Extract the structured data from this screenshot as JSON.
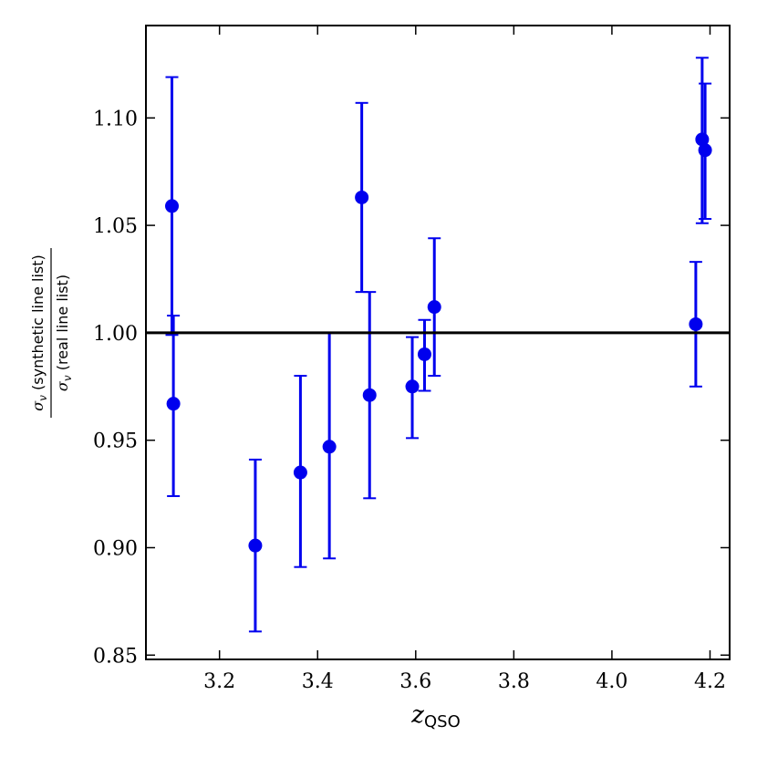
{
  "chart_data": {
    "type": "scatter",
    "xlabel": {
      "base": "z",
      "sub": "QSO"
    },
    "ylabel": {
      "numerator": {
        "symbol": "σ",
        "sub": "v",
        "text": " (synthetic line list)"
      },
      "denominator": {
        "symbol": "σ",
        "sub": "v",
        "text": " (real line list)"
      }
    },
    "xlim": [
      3.05,
      4.24
    ],
    "ylim": [
      0.848,
      1.143
    ],
    "xticks": [
      3.2,
      3.4,
      3.6,
      3.8,
      4.0,
      4.2
    ],
    "xtick_labels": [
      "3.2",
      "3.4",
      "3.6",
      "3.8",
      "4.0",
      "4.2"
    ],
    "yticks": [
      0.85,
      0.9,
      0.95,
      1.0,
      1.05,
      1.1
    ],
    "ytick_labels": [
      "0.85",
      "0.90",
      "0.95",
      "1.00",
      "1.05",
      "1.10"
    ],
    "reference_line": {
      "y": 1.0,
      "color": "#000000"
    },
    "series": [
      {
        "color": "#0000ee",
        "points": [
          {
            "x": 3.103,
            "y": 1.059,
            "lo": 0.999,
            "hi": 1.119
          },
          {
            "x": 3.106,
            "y": 0.967,
            "lo": 0.924,
            "hi": 1.008
          },
          {
            "x": 3.273,
            "y": 0.901,
            "lo": 0.861,
            "hi": 0.941
          },
          {
            "x": 3.365,
            "y": 0.935,
            "lo": 0.891,
            "hi": 0.98
          },
          {
            "x": 3.424,
            "y": 0.947,
            "lo": 0.895,
            "hi": 1.0
          },
          {
            "x": 3.49,
            "y": 1.063,
            "lo": 1.019,
            "hi": 1.107
          },
          {
            "x": 3.506,
            "y": 0.971,
            "lo": 0.923,
            "hi": 1.019
          },
          {
            "x": 3.593,
            "y": 0.975,
            "lo": 0.951,
            "hi": 0.998
          },
          {
            "x": 3.618,
            "y": 0.99,
            "lo": 0.973,
            "hi": 1.006
          },
          {
            "x": 3.638,
            "y": 1.012,
            "lo": 0.98,
            "hi": 1.044
          },
          {
            "x": 4.171,
            "y": 1.004,
            "lo": 0.975,
            "hi": 1.033
          },
          {
            "x": 4.184,
            "y": 1.09,
            "lo": 1.051,
            "hi": 1.128
          },
          {
            "x": 4.19,
            "y": 1.085,
            "lo": 1.053,
            "hi": 1.116
          }
        ]
      }
    ]
  }
}
